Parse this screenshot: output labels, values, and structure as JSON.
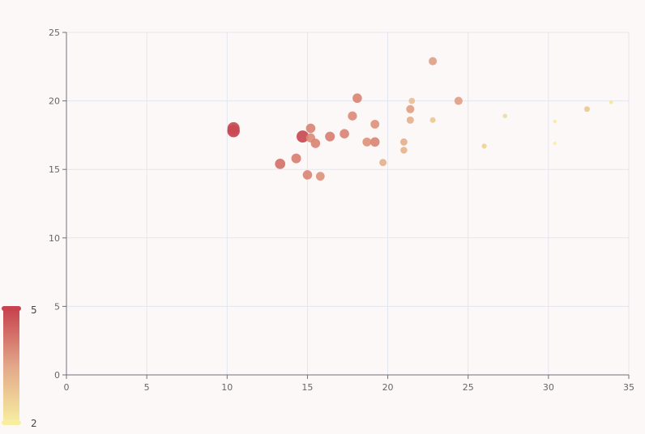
{
  "chart_data": {
    "type": "scatter",
    "title": "",
    "xlabel": "",
    "ylabel": "",
    "xlim": [
      0,
      35
    ],
    "ylim": [
      0,
      25
    ],
    "x_ticks": [
      "0",
      "5",
      "10",
      "15",
      "20",
      "25",
      "30",
      "35"
    ],
    "y_ticks": [
      "0",
      "5",
      "10",
      "15",
      "20",
      "25"
    ],
    "grid": true,
    "visual_map": {
      "min": 2,
      "max": 5,
      "min_label": "2",
      "max_label": "5",
      "color_low": "#f7eea0",
      "color_mid": "#e2a789",
      "color_high": "#c7434e",
      "placement": "bottom-left"
    },
    "points": [
      {
        "x": 10.4,
        "y": 17.8,
        "v": 5.0
      },
      {
        "x": 10.4,
        "y": 18.0,
        "v": 4.9
      },
      {
        "x": 13.3,
        "y": 15.4,
        "v": 4.3
      },
      {
        "x": 14.3,
        "y": 15.8,
        "v": 4.1
      },
      {
        "x": 14.7,
        "y": 17.4,
        "v": 4.9
      },
      {
        "x": 15.0,
        "y": 14.6,
        "v": 4.0
      },
      {
        "x": 15.2,
        "y": 18.0,
        "v": 4.0
      },
      {
        "x": 15.2,
        "y": 17.3,
        "v": 3.9
      },
      {
        "x": 15.5,
        "y": 16.9,
        "v": 4.0
      },
      {
        "x": 15.8,
        "y": 14.5,
        "v": 3.8
      },
      {
        "x": 16.4,
        "y": 17.4,
        "v": 4.1
      },
      {
        "x": 17.3,
        "y": 17.6,
        "v": 4.0
      },
      {
        "x": 17.8,
        "y": 18.9,
        "v": 3.9
      },
      {
        "x": 18.1,
        "y": 20.2,
        "v": 4.0
      },
      {
        "x": 18.7,
        "y": 17.0,
        "v": 3.8
      },
      {
        "x": 19.2,
        "y": 17.0,
        "v": 4.0
      },
      {
        "x": 19.2,
        "y": 18.3,
        "v": 3.8
      },
      {
        "x": 19.7,
        "y": 15.5,
        "v": 3.3
      },
      {
        "x": 21.0,
        "y": 17.0,
        "v": 3.3
      },
      {
        "x": 21.0,
        "y": 16.4,
        "v": 3.2
      },
      {
        "x": 21.4,
        "y": 19.4,
        "v": 3.6
      },
      {
        "x": 21.4,
        "y": 18.6,
        "v": 3.3
      },
      {
        "x": 21.5,
        "y": 20.0,
        "v": 3.0
      },
      {
        "x": 22.8,
        "y": 22.9,
        "v": 3.6
      },
      {
        "x": 22.8,
        "y": 18.6,
        "v": 2.8
      },
      {
        "x": 24.4,
        "y": 20.0,
        "v": 3.6
      },
      {
        "x": 26.0,
        "y": 16.7,
        "v": 2.6
      },
      {
        "x": 27.3,
        "y": 18.9,
        "v": 2.4
      },
      {
        "x": 30.4,
        "y": 18.5,
        "v": 2.1
      },
      {
        "x": 30.4,
        "y": 16.9,
        "v": 2.0
      },
      {
        "x": 32.4,
        "y": 19.4,
        "v": 2.8
      },
      {
        "x": 33.9,
        "y": 19.9,
        "v": 2.2
      }
    ]
  }
}
